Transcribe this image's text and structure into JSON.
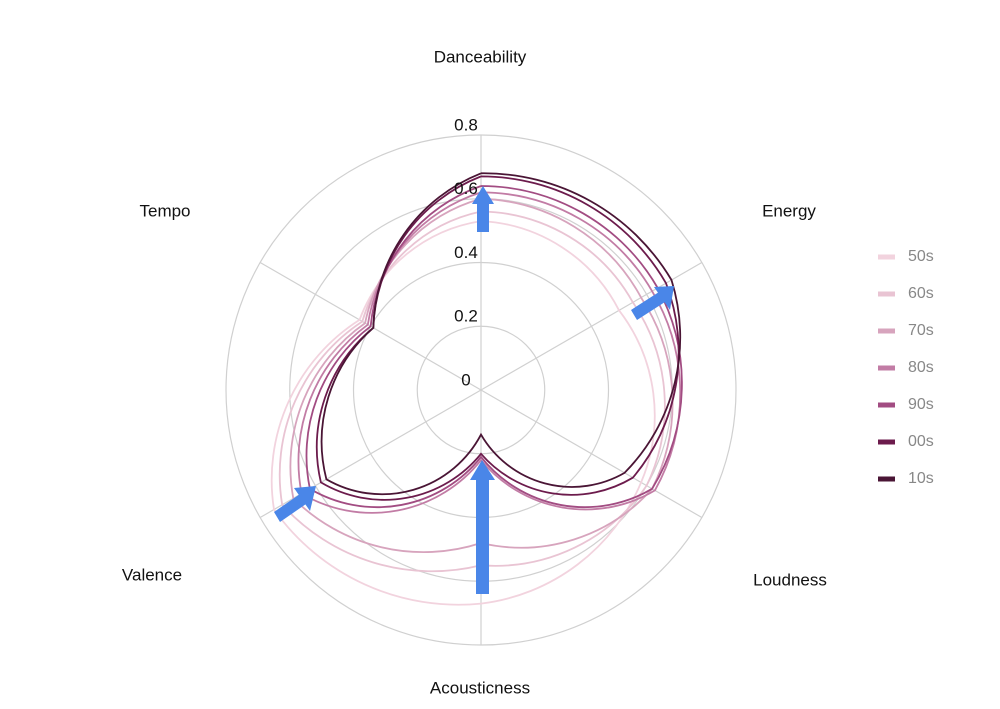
{
  "chart_data": {
    "type": "radar",
    "categories": [
      "Danceability",
      "Energy",
      "Loudness",
      "Acousticness",
      "Valence",
      "Tempo"
    ],
    "ylim": [
      0,
      0.8
    ],
    "yticks": [
      0.0,
      0.2,
      0.4,
      0.6,
      0.8
    ],
    "grid": true,
    "legend": "right",
    "series": [
      {
        "name": "50s",
        "color": "#f2d3de",
        "values": [
          0.53,
          0.5,
          0.58,
          0.67,
          0.75,
          0.44
        ]
      },
      {
        "name": "60s",
        "color": "#e9c4d3",
        "values": [
          0.56,
          0.55,
          0.6,
          0.55,
          0.72,
          0.43
        ]
      },
      {
        "name": "70s",
        "color": "#d7a4bd",
        "values": [
          0.6,
          0.58,
          0.62,
          0.48,
          0.68,
          0.42
        ]
      },
      {
        "name": "80s",
        "color": "#c27ca5",
        "values": [
          0.62,
          0.62,
          0.63,
          0.22,
          0.65,
          0.41
        ]
      },
      {
        "name": "90s",
        "color": "#a24c82",
        "values": [
          0.64,
          0.64,
          0.62,
          0.21,
          0.62,
          0.4
        ]
      },
      {
        "name": "00s",
        "color": "#6c1b4c",
        "values": [
          0.67,
          0.67,
          0.55,
          0.2,
          0.58,
          0.39
        ]
      },
      {
        "name": "10s",
        "color": "#4a1535",
        "values": [
          0.68,
          0.69,
          0.52,
          0.14,
          0.56,
          0.39
        ]
      }
    ]
  }
}
